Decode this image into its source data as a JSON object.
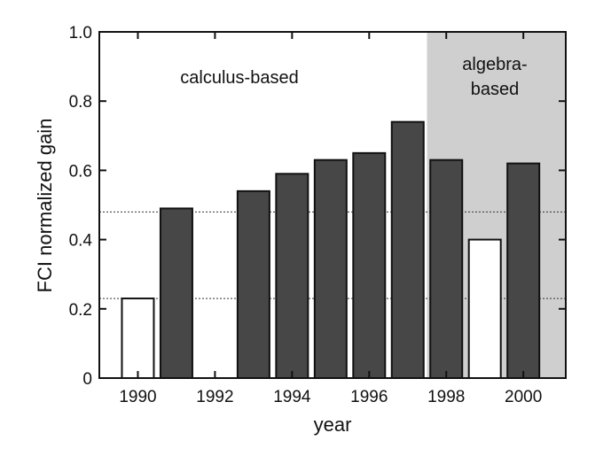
{
  "chart_data": {
    "type": "bar",
    "xlabel": "year",
    "ylabel": "FCI normalized gain",
    "xlim": [
      1989,
      2001.1
    ],
    "ylim": [
      0,
      1.0
    ],
    "x_ticks": [
      1990,
      1992,
      1994,
      1996,
      1998,
      2000
    ],
    "y_ticks": [
      0,
      0.2,
      0.4,
      0.6,
      0.8,
      1.0
    ],
    "y_tick_labels": [
      "0",
      "0.2",
      "0.4",
      "0.6",
      "0.8",
      "1.0"
    ],
    "bars": [
      {
        "x": 1990,
        "value": 0.23,
        "style": "open"
      },
      {
        "x": 1991,
        "value": 0.49,
        "style": "filled"
      },
      {
        "x": 1993,
        "value": 0.54,
        "style": "filled"
      },
      {
        "x": 1994,
        "value": 0.59,
        "style": "filled"
      },
      {
        "x": 1995,
        "value": 0.63,
        "style": "filled"
      },
      {
        "x": 1996,
        "value": 0.65,
        "style": "filled"
      },
      {
        "x": 1997,
        "value": 0.74,
        "style": "filled"
      },
      {
        "x": 1998,
        "value": 0.63,
        "style": "filled"
      },
      {
        "x": 1999,
        "value": 0.4,
        "style": "open"
      },
      {
        "x": 2000,
        "value": 0.62,
        "style": "filled"
      }
    ],
    "reference_lines": [
      0.48,
      0.23
    ],
    "shaded_region": {
      "x_from": 1997.5,
      "x_to": 2001.1,
      "color": "#cfcfcf"
    },
    "annotations": {
      "calculus": "calculus-based",
      "algebra_line1": "algebra-",
      "algebra_line2": "based"
    },
    "colors": {
      "filled_bar": "#474747",
      "open_bar": "#ffffff",
      "outline": "#111111",
      "shade": "#cfcfcf"
    },
    "grid": false,
    "legend": "none"
  }
}
